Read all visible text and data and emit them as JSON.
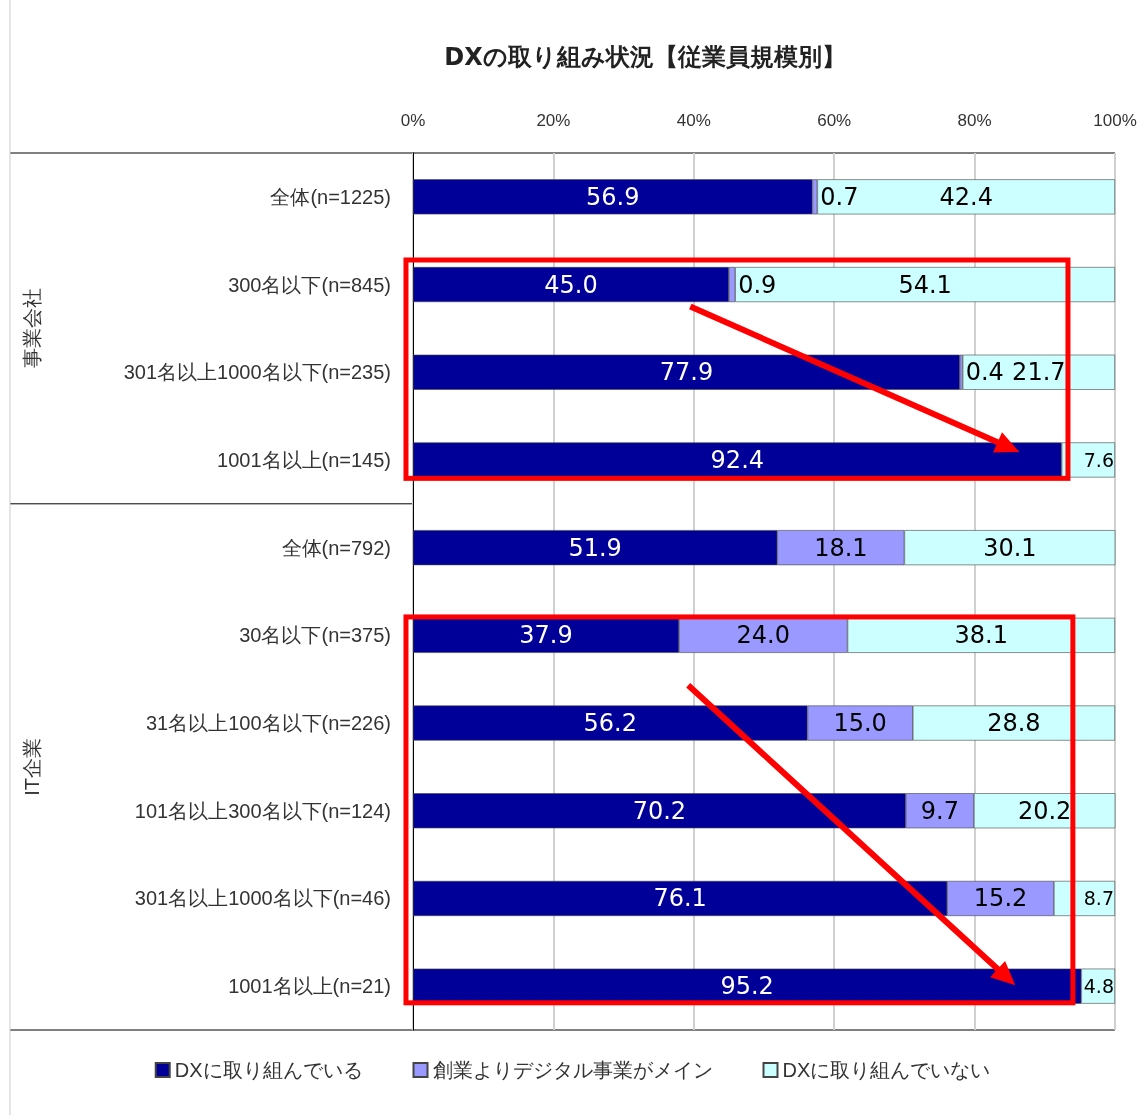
{
  "chart_data": {
    "type": "bar",
    "orientation": "horizontal",
    "stacked": true,
    "title": "DXの取り組み状況【従業員規模別】",
    "categories": [
      "全体(n=1225)",
      "300名以下(n=845)",
      "301名以上1000名以下(n=235)",
      "1001名以上(n=145)",
      "全体(n=792)",
      "30名以下(n=375)",
      "31名以上100名以下(n=226)",
      "101名以上300名以下(n=124)",
      "301名以上1000名以下(n=46)",
      "1001名以上(n=21)"
    ],
    "series": [
      {
        "name": "DXに取り組んでいる",
        "color": "#000099",
        "values": [
          56.9,
          45.0,
          77.9,
          92.4,
          51.9,
          37.9,
          56.2,
          70.2,
          76.1,
          95.2
        ],
        "value_labels": [
          "56.9",
          "45.0",
          "77.9",
          "92.4",
          "51.9",
          "37.9",
          "56.2",
          "70.2",
          "76.1",
          "95.2"
        ]
      },
      {
        "name": "創業よりデジタル事業がメイン",
        "color": "#9999ff",
        "values": [
          0.7,
          0.9,
          0.4,
          null,
          18.1,
          24.0,
          15.0,
          9.7,
          15.2,
          null
        ],
        "value_labels": [
          "0.7",
          "0.9",
          "0.4",
          null,
          "18.1",
          "24.0",
          "15.0",
          "9.7",
          "15.2",
          null
        ]
      },
      {
        "name": "DXに取り組んでいない",
        "color": "#ccffff",
        "values": [
          42.4,
          54.1,
          21.7,
          7.6,
          30.1,
          38.1,
          28.8,
          20.2,
          8.7,
          4.8
        ],
        "value_labels": [
          "42.4",
          "54.1",
          "21.7",
          "7.6",
          "30.1",
          "38.1",
          "28.8",
          "20.2",
          "8.7",
          "4.8"
        ]
      }
    ],
    "xlim": [
      0,
      100
    ],
    "xticks": [
      {
        "value": 0,
        "label": "0%"
      },
      {
        "value": 20,
        "label": "20%"
      },
      {
        "value": 40,
        "label": "40%"
      },
      {
        "value": 60,
        "label": "60%"
      },
      {
        "value": 80,
        "label": "80%"
      },
      {
        "value": 100,
        "label": "100%"
      }
    ],
    "grid": "x",
    "legend": "bottom",
    "annotations": [
      "事業会社",
      "IT企業"
    ]
  }
}
